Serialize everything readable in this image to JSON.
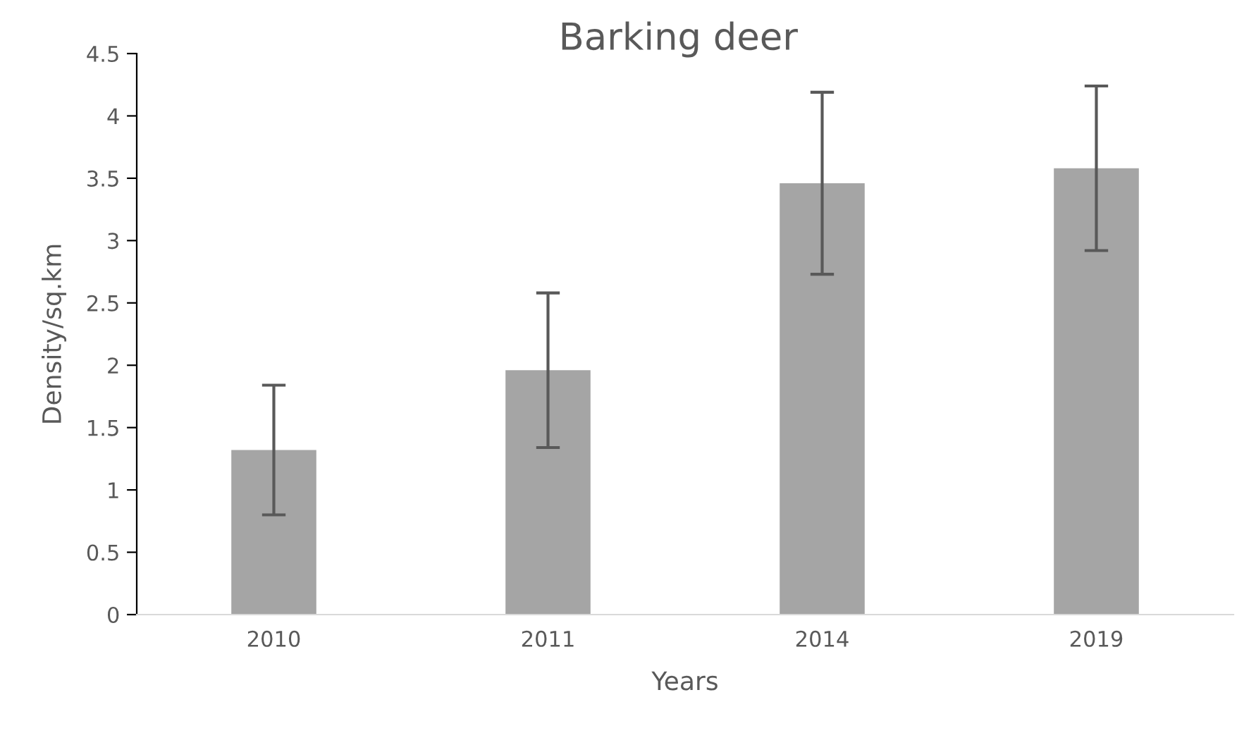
{
  "chart_data": {
    "type": "bar",
    "title": "Barking deer",
    "xlabel": "Years",
    "ylabel": "Density/sq.km",
    "categories": [
      "2010",
      "2011",
      "2014",
      "2019"
    ],
    "values": [
      1.32,
      1.96,
      3.46,
      3.58
    ],
    "errors": [
      0.52,
      0.62,
      0.73,
      0.66
    ],
    "color": "#a5a5a5",
    "ylim": [
      0,
      4.5
    ],
    "yticks": [
      0,
      0.5,
      1,
      1.5,
      2,
      2.5,
      3,
      3.5,
      4,
      4.5
    ],
    "grid": false,
    "legend": false
  }
}
